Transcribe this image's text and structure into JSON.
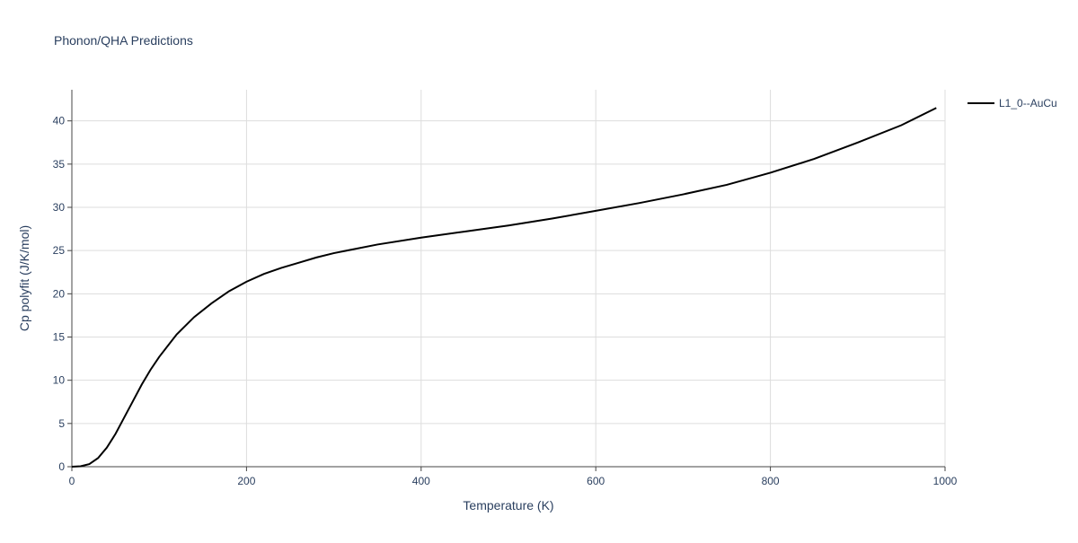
{
  "chart_data": {
    "type": "line",
    "title": "Phonon/QHA Predictions",
    "x_label": "Temperature (K)",
    "y_label": "Cp polyfit (J/K/mol)",
    "x": [
      0,
      10,
      20,
      30,
      40,
      50,
      60,
      70,
      80,
      90,
      100,
      120,
      140,
      160,
      180,
      200,
      220,
      240,
      260,
      280,
      300,
      350,
      400,
      450,
      500,
      550,
      600,
      650,
      700,
      750,
      800,
      850,
      900,
      950,
      990
    ],
    "series": [
      {
        "name": "L1_0--AuCu",
        "color": "#000000",
        "values": [
          0,
          0.05,
          0.3,
          1.0,
          2.2,
          3.8,
          5.7,
          7.6,
          9.5,
          11.2,
          12.7,
          15.3,
          17.3,
          18.9,
          20.3,
          21.4,
          22.3,
          23.0,
          23.6,
          24.2,
          24.7,
          25.7,
          26.5,
          27.2,
          27.9,
          28.7,
          29.6,
          30.5,
          31.5,
          32.6,
          34.0,
          35.6,
          37.5,
          39.5,
          41.5
        ]
      }
    ],
    "xlim": [
      0,
      1000
    ],
    "ylim": [
      0,
      43.6
    ],
    "xticks": [
      0,
      200,
      400,
      600,
      800,
      1000
    ],
    "yticks": [
      0,
      5,
      10,
      15,
      20,
      25,
      30,
      35,
      40
    ],
    "grid": true,
    "legend": "right"
  }
}
